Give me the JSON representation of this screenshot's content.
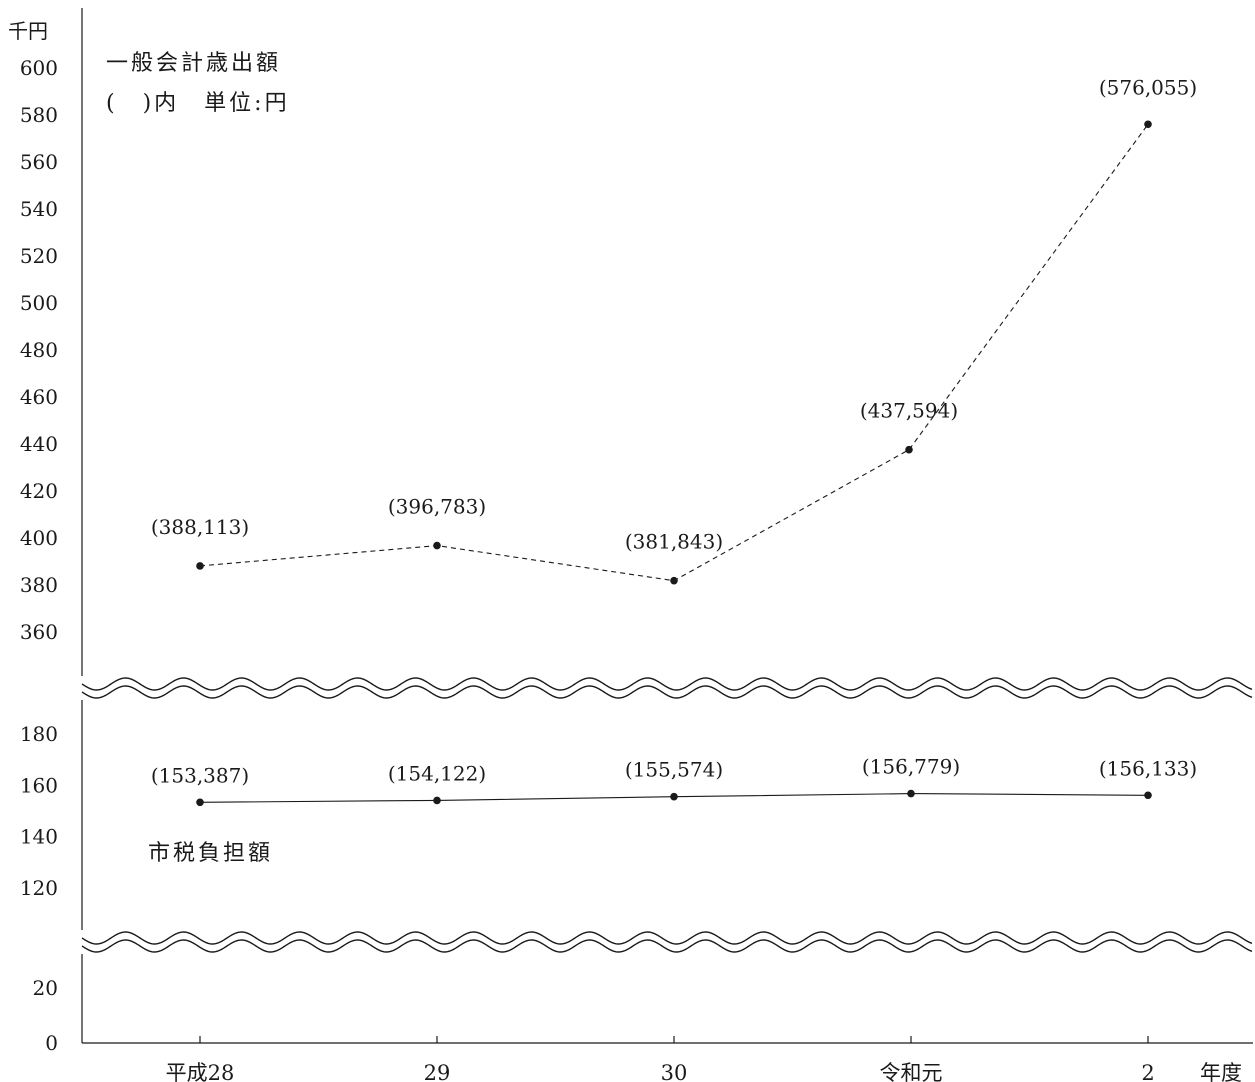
{
  "chart_data": {
    "type": "line",
    "y_unit_label": "千円",
    "x_unit_label": "年度",
    "categories": [
      "平成28",
      "29",
      "30",
      "令和元",
      "2"
    ],
    "y_ticks_upper": [
      360,
      380,
      400,
      420,
      440,
      460,
      480,
      500,
      520,
      540,
      560,
      580,
      600
    ],
    "y_ticks_middle": [
      120,
      140,
      160,
      180
    ],
    "y_ticks_lower": [
      0,
      20
    ],
    "axis_breaks": [
      [
        20,
        120
      ],
      [
        180,
        360
      ]
    ],
    "series": [
      {
        "name": "一般会計歳出額",
        "style": "dashed",
        "values": [
          388113,
          396783,
          381843,
          437594,
          576055
        ],
        "labels": [
          "(388,113)",
          "(396,783)",
          "(381,843)",
          "(437,594)",
          "(576,055)"
        ]
      },
      {
        "name": "市税負担額",
        "style": "solid",
        "values": [
          153387,
          154122,
          155574,
          156779,
          156133
        ],
        "labels": [
          "(153,387)",
          "(154,122)",
          "(155,574)",
          "(156,779)",
          "(156,133)"
        ]
      }
    ],
    "annotations": {
      "series1_title": "一般会計歳出額",
      "series1_note": "(　)内　単位:円",
      "series2_title": "市税負担額"
    },
    "grid": false
  }
}
